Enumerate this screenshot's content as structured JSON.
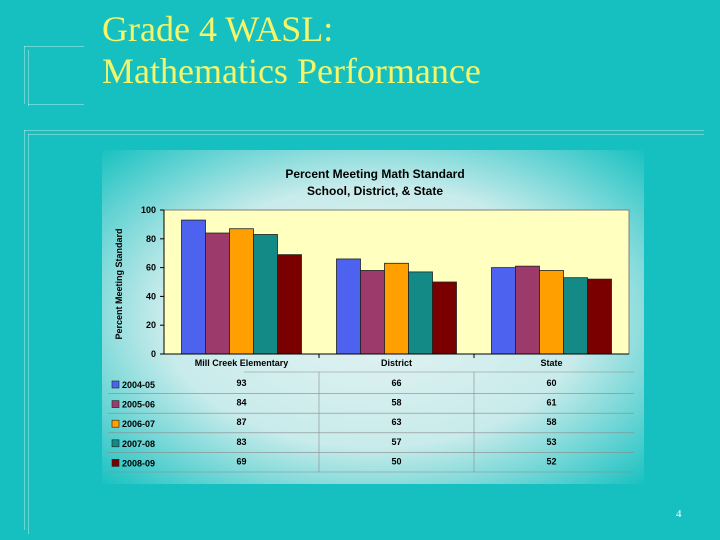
{
  "slide": {
    "title_line1": "Grade 4 WASL:",
    "title_line2": "Mathematics Performance",
    "page_number": "4"
  },
  "colors": {
    "background": "#16c0c0",
    "title": "#f5f56a",
    "plot_area": "#ffffc0"
  },
  "chart_data": {
    "type": "bar",
    "title": "Percent Meeting Math Standard",
    "subtitle": "School, District, & State",
    "ylabel": "Percent Meeting Standard",
    "xlabel": "",
    "ylim": [
      0,
      100
    ],
    "yticks": [
      0,
      20,
      40,
      60,
      80,
      100
    ],
    "grid": false,
    "legend": "table-below",
    "categories": [
      "Mill Creek Elementary",
      "District",
      "State"
    ],
    "series": [
      {
        "name": "2004-05",
        "color": "#4d63ef",
        "values": [
          93,
          66,
          60
        ]
      },
      {
        "name": "2005-06",
        "color": "#9c3a6c",
        "values": [
          84,
          58,
          61
        ]
      },
      {
        "name": "2006-07",
        "color": "#ff9f00",
        "values": [
          87,
          63,
          58
        ]
      },
      {
        "name": "2007-08",
        "color": "#138a86",
        "values": [
          83,
          57,
          53
        ]
      },
      {
        "name": "2008-09",
        "color": "#7a0000",
        "values": [
          69,
          50,
          52
        ]
      }
    ]
  }
}
